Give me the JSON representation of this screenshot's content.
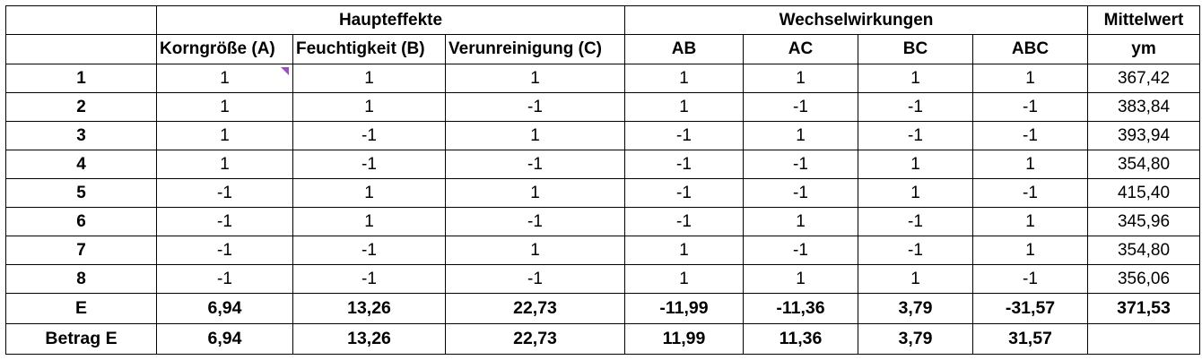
{
  "header": {
    "group_main": "Haupteffekte",
    "group_interactions": "Wechselwirkungen",
    "group_mean": "Mittelwert",
    "columns": [
      "Korngröße (A)",
      "Feuchtigkeit (B)",
      "Verunreinigung (C)",
      "AB",
      "AC",
      "BC",
      "ABC",
      "ym"
    ]
  },
  "rows": [
    {
      "id": "1",
      "cells": [
        "1",
        "1",
        "1",
        "1",
        "1",
        "1",
        "1",
        "367,42"
      ]
    },
    {
      "id": "2",
      "cells": [
        "1",
        "1",
        "-1",
        "1",
        "-1",
        "-1",
        "-1",
        "383,84"
      ]
    },
    {
      "id": "3",
      "cells": [
        "1",
        "-1",
        "1",
        "-1",
        "1",
        "-1",
        "-1",
        "393,94"
      ]
    },
    {
      "id": "4",
      "cells": [
        "1",
        "-1",
        "-1",
        "-1",
        "-1",
        "1",
        "1",
        "354,80"
      ]
    },
    {
      "id": "5",
      "cells": [
        "-1",
        "1",
        "1",
        "-1",
        "-1",
        "1",
        "-1",
        "415,40"
      ]
    },
    {
      "id": "6",
      "cells": [
        "-1",
        "1",
        "-1",
        "-1",
        "1",
        "-1",
        "1",
        "345,96"
      ]
    },
    {
      "id": "7",
      "cells": [
        "-1",
        "-1",
        "1",
        "1",
        "-1",
        "-1",
        "1",
        "354,80"
      ]
    },
    {
      "id": "8",
      "cells": [
        "-1",
        "-1",
        "-1",
        "1",
        "1",
        "1",
        "-1",
        "356,06"
      ]
    }
  ],
  "effects": {
    "label": "E",
    "cells": [
      "6,94",
      "13,26",
      "22,73",
      "-11,99",
      "-11,36",
      "3,79",
      "-31,57",
      "371,53"
    ]
  },
  "abs_effects": {
    "label": "Betrag E",
    "cells": [
      "6,94",
      "13,26",
      "22,73",
      "11,99",
      "11,36",
      "3,79",
      "31,57",
      ""
    ]
  },
  "colors": {
    "comment_marker": "#a64bc8",
    "border": "#000000"
  }
}
